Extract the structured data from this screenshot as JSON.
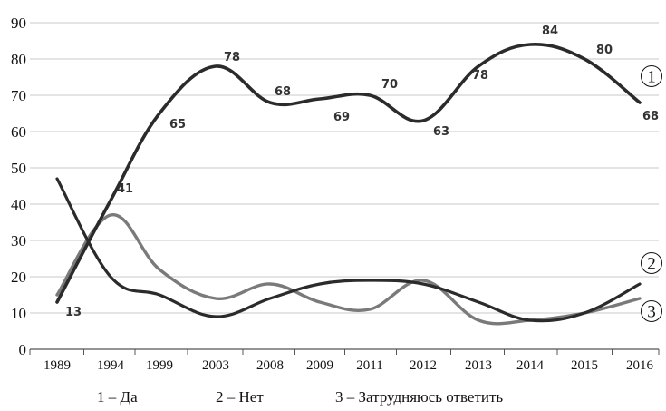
{
  "chart_data": {
    "type": "line",
    "categories": [
      "1989",
      "1994",
      "1999",
      "2003",
      "2008",
      "2009",
      "2011",
      "2012",
      "2013",
      "2014",
      "2015",
      "2016"
    ],
    "ylim": [
      0,
      90
    ],
    "yticks": [
      0,
      10,
      20,
      30,
      40,
      50,
      60,
      70,
      80,
      90
    ],
    "grid": true,
    "series": [
      {
        "name": "1",
        "color": "#2b2b2b",
        "values": [
          13,
          41,
          65,
          78,
          68,
          69,
          70,
          63,
          78,
          84,
          80,
          68
        ],
        "data_labels": [
          "13",
          "41",
          "65",
          "78",
          "68",
          "69",
          "70",
          "63",
          "78",
          "84",
          "80",
          "68"
        ]
      },
      {
        "name": "2",
        "color": "#7a7a7a",
        "values": [
          15,
          37,
          22,
          14,
          18,
          13,
          11,
          19,
          8,
          8,
          10,
          14
        ]
      },
      {
        "name": "3",
        "color": "#2b2b2b",
        "values": [
          47,
          20,
          15,
          9,
          14,
          18,
          19,
          18,
          13,
          8,
          10,
          18
        ]
      }
    ],
    "legend": [
      {
        "label": "1 – Да"
      },
      {
        "label": "2 – Нет"
      },
      {
        "label": "3 – Затрудняюсь ответить"
      }
    ]
  }
}
